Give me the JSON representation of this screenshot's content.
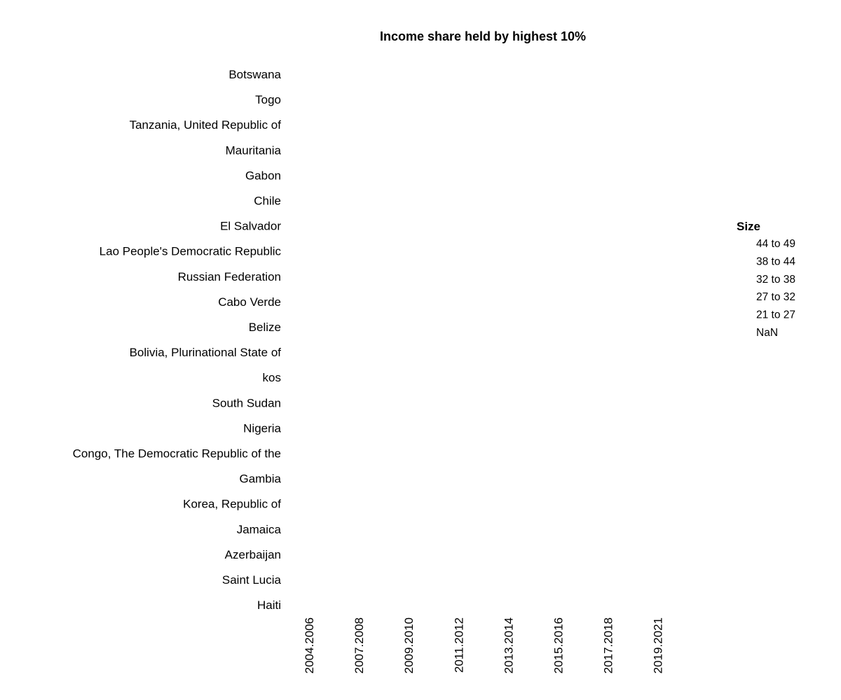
{
  "chart_data": {
    "type": "scatter",
    "title": "Income share held by highest 10%",
    "xlabel": "",
    "ylabel": "",
    "x_categories": [
      "2004.2006",
      "2007.2008",
      "2009.2010",
      "2011.2012",
      "2013.2014",
      "2015.2016",
      "2017.2018",
      "2019.2021"
    ],
    "y_categories": [
      "Botswana",
      "Togo",
      "Tanzania, United Republic of",
      "Mauritania",
      "Gabon",
      "Chile",
      "El Salvador",
      "Lao People's Democratic Republic",
      "Russian Federation",
      "Cabo Verde",
      "Belize",
      "Bolivia, Plurinational State of",
      "kos",
      "South Sudan",
      "Nigeria",
      "Congo, The Democratic Republic of the",
      "Gambia",
      "Korea, Republic of",
      "Jamaica",
      "Azerbaijan",
      "Saint Lucia",
      "Haiti"
    ],
    "legend": {
      "title": "Size",
      "placement": "right",
      "items": [
        "44 to 49",
        "38 to 44",
        "32 to 38",
        "27 to 32",
        "21 to 27",
        "NaN"
      ]
    },
    "points": [],
    "grid": false
  }
}
